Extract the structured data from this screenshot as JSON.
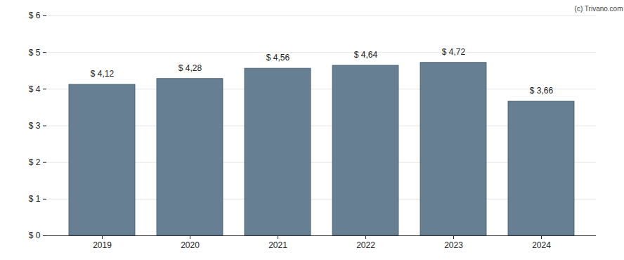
{
  "chart_data": {
    "type": "bar",
    "annotation": "(c) Trivano.com",
    "categories": [
      "2019",
      "2020",
      "2021",
      "2022",
      "2023",
      "2024"
    ],
    "values": [
      4.12,
      4.28,
      4.56,
      4.64,
      4.72,
      3.66
    ],
    "value_labels": [
      "$ 4,12",
      "$ 4,28",
      "$ 4,56",
      "$ 4,64",
      "$ 4,72",
      "$ 3,66"
    ],
    "data_labels": true,
    "color": "#667f93",
    "ylim": [
      0,
      6
    ],
    "yticks": [
      {
        "value": 0,
        "label": "$ 0"
      },
      {
        "value": 1,
        "label": "$ 1"
      },
      {
        "value": 2,
        "label": "$ 2"
      },
      {
        "value": 3,
        "label": "$ 3"
      },
      {
        "value": 4,
        "label": "$ 4"
      },
      {
        "value": 5,
        "label": "$ 5"
      },
      {
        "value": 6,
        "label": "$ 6"
      }
    ],
    "grid": true
  }
}
